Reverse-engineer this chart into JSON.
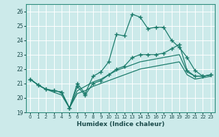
{
  "xlabel": "Humidex (Indice chaleur)",
  "bg_color": "#cceaea",
  "grid_color": "#ffffff",
  "line_color": "#1a7a6a",
  "xlim": [
    -0.5,
    23.5
  ],
  "ylim": [
    19,
    26.5
  ],
  "yticks": [
    19,
    20,
    21,
    22,
    23,
    24,
    25,
    26
  ],
  "xticks": [
    0,
    1,
    2,
    3,
    4,
    5,
    6,
    7,
    8,
    9,
    10,
    11,
    12,
    13,
    14,
    15,
    16,
    17,
    18,
    19,
    20,
    21,
    22,
    23
  ],
  "hours": [
    0,
    1,
    2,
    3,
    4,
    5,
    6,
    7,
    8,
    9,
    10,
    11,
    12,
    13,
    14,
    15,
    16,
    17,
    18,
    19,
    20,
    21,
    22,
    23
  ],
  "line_upper": [
    21.3,
    20.9,
    20.6,
    20.5,
    20.4,
    19.3,
    21.0,
    20.3,
    21.5,
    21.8,
    22.5,
    24.4,
    24.3,
    25.8,
    25.6,
    24.8,
    24.9,
    24.9,
    24.0,
    23.5,
    22.8,
    21.9,
    21.5,
    21.6
  ],
  "line_lower": [
    21.3,
    20.9,
    20.6,
    20.5,
    20.4,
    19.3,
    20.8,
    20.2,
    21.0,
    21.2,
    21.6,
    22.0,
    22.2,
    22.8,
    23.0,
    23.0,
    23.0,
    23.1,
    23.4,
    23.7,
    21.9,
    21.5,
    21.5,
    21.6
  ],
  "line_mean1": [
    21.3,
    20.9,
    20.6,
    20.5,
    20.4,
    19.3,
    20.5,
    20.8,
    21.1,
    21.3,
    21.6,
    21.9,
    22.1,
    22.3,
    22.5,
    22.6,
    22.7,
    22.8,
    22.9,
    23.0,
    21.8,
    21.5,
    21.5,
    21.6
  ],
  "line_mean2": [
    21.3,
    20.9,
    20.6,
    20.4,
    20.2,
    19.3,
    20.3,
    20.5,
    20.8,
    21.0,
    21.2,
    21.4,
    21.6,
    21.8,
    22.0,
    22.1,
    22.2,
    22.3,
    22.4,
    22.5,
    21.6,
    21.3,
    21.4,
    21.5
  ]
}
